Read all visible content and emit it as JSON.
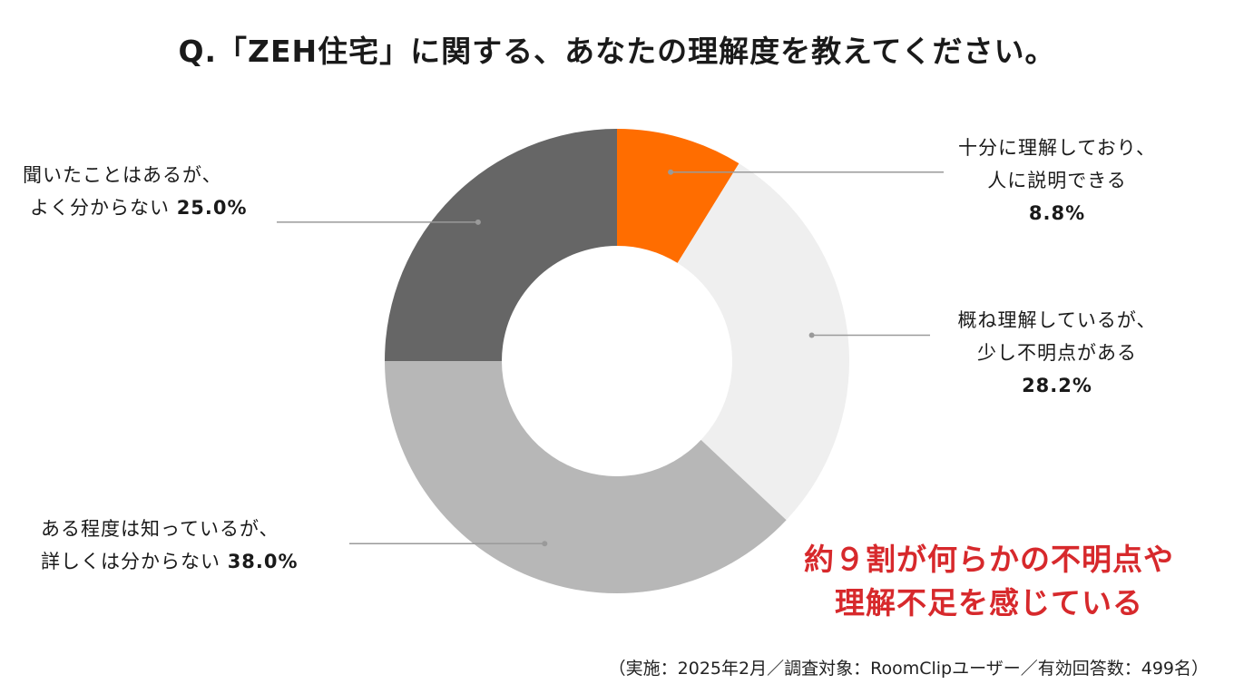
{
  "title": "Q.「ZEH住宅」に関する、あなたの理解度を教えてください。",
  "chart_data": {
    "type": "pie",
    "donut": true,
    "start": "top",
    "direction": "clockwise",
    "slices": [
      {
        "label_lines": [
          "十分に理解しており、",
          "人に説明できる"
        ],
        "value": 8.8,
        "value_text": "8.8%",
        "color": "#ff6d00"
      },
      {
        "label_lines": [
          "概ね理解しているが、",
          "少し不明点がある"
        ],
        "value": 28.2,
        "value_text": "28.2%",
        "color": "#efefef"
      },
      {
        "label_lines": [
          "ある程度は知っているが、",
          "詳しくは分からない"
        ],
        "value": 38.0,
        "value_text": "38.0%",
        "color": "#b7b7b7"
      },
      {
        "label_lines": [
          "聞いたことはあるが、",
          "よく分からない"
        ],
        "value": 25.0,
        "value_text": "25.0%",
        "color": "#666666"
      }
    ]
  },
  "callout": {
    "line1": "約９割が何らかの不明点や",
    "line2": "理解不足を感じている",
    "color": "#d7292c"
  },
  "footnote": "（実施：2025年2月／調査対象：RoomClipユーザー／有効回答数：499名）"
}
